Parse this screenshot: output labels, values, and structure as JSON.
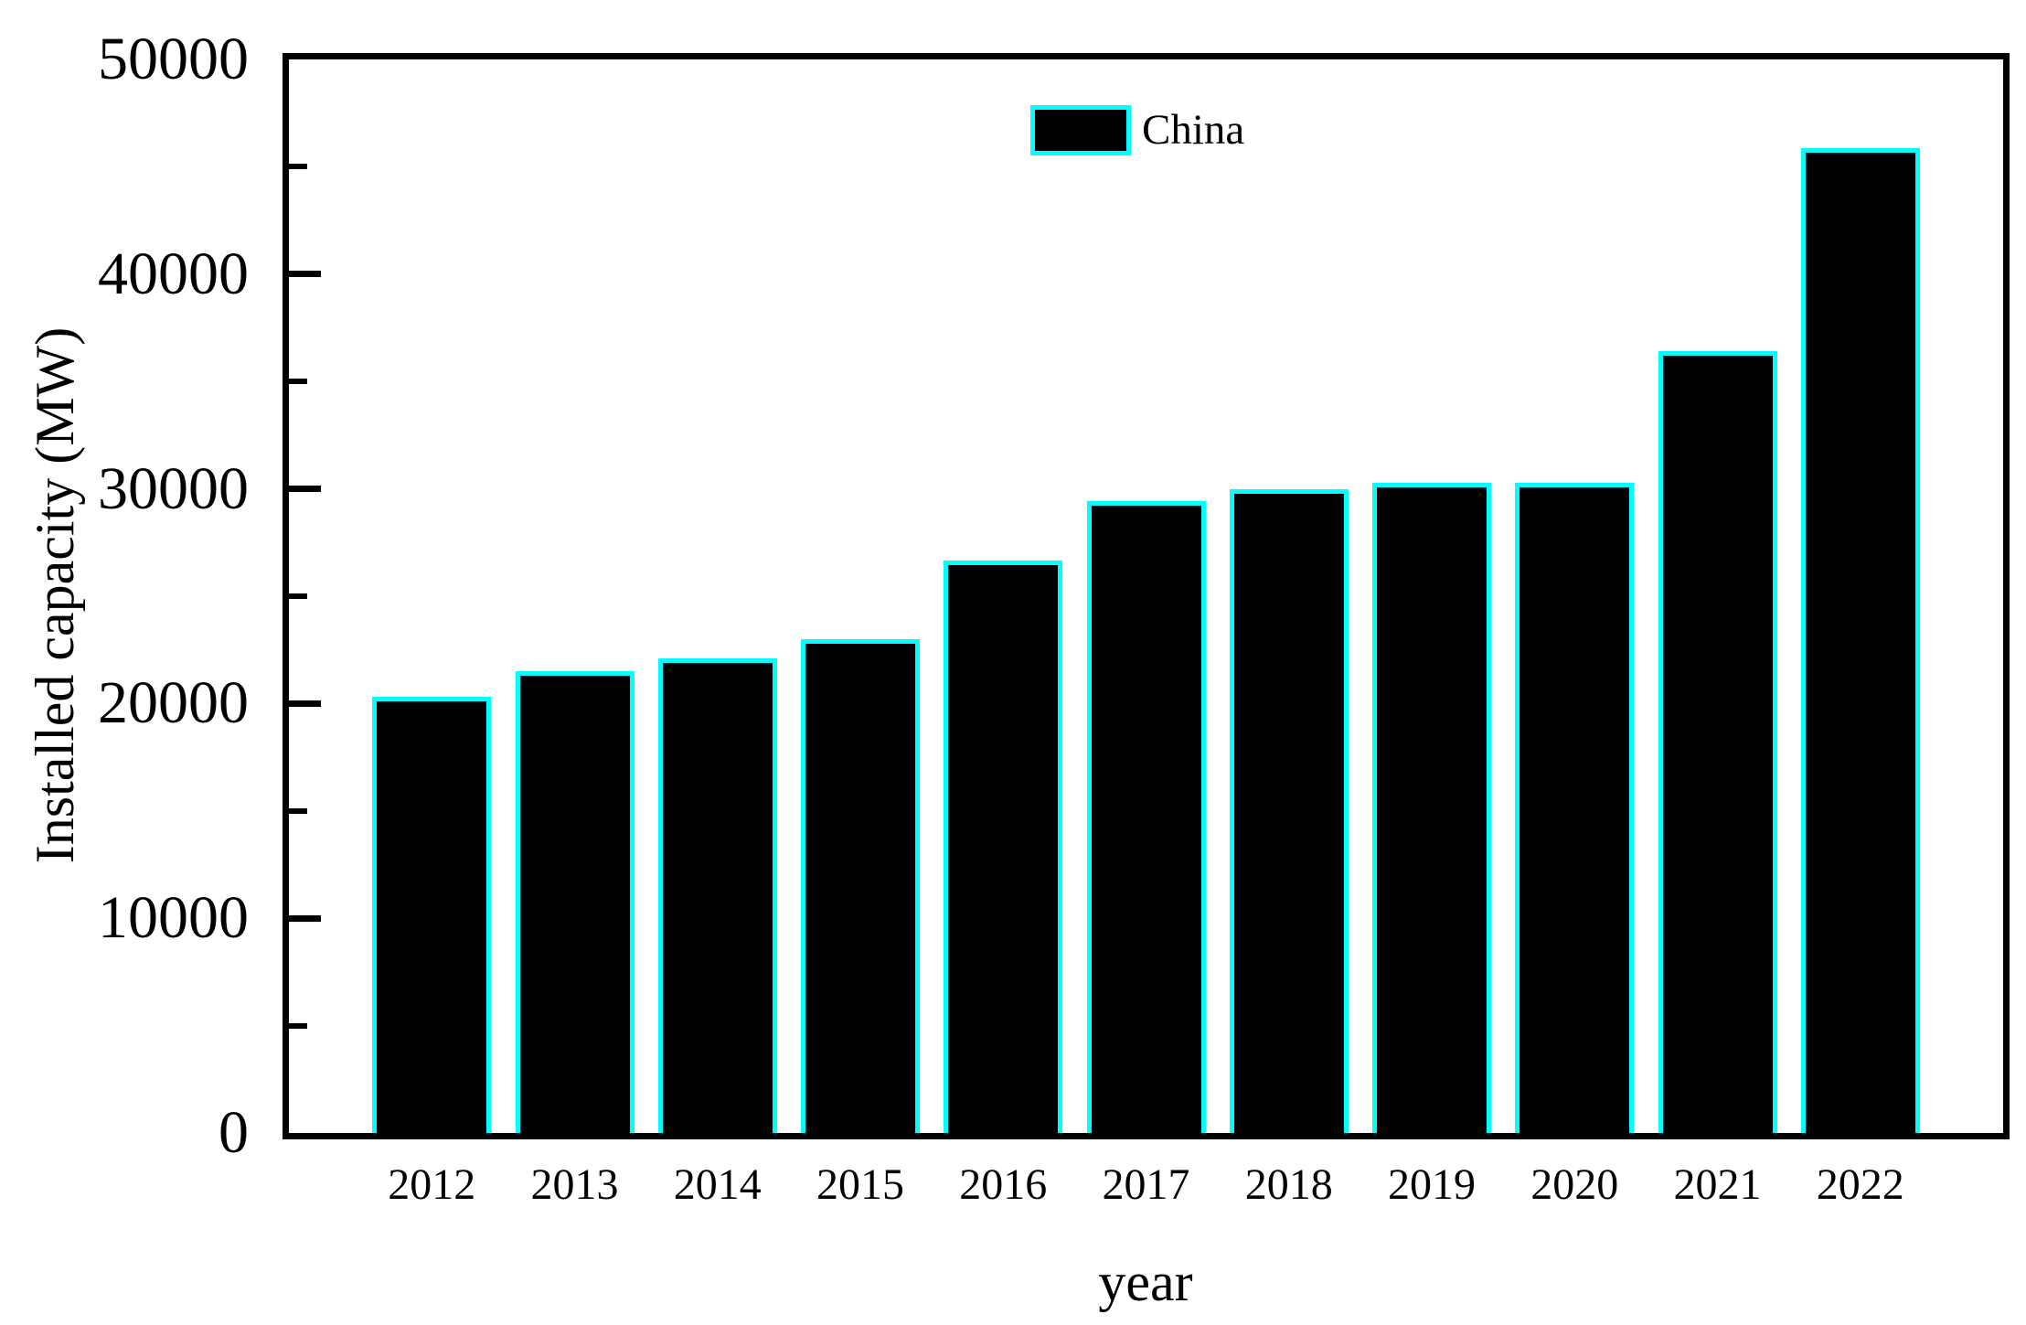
{
  "chart_data": {
    "type": "bar",
    "title": "",
    "xlabel": "year",
    "ylabel": "Installed capacity (MW)",
    "categories": [
      "2012",
      "2013",
      "2014",
      "2015",
      "2016",
      "2017",
      "2018",
      "2019",
      "2020",
      "2021",
      "2022"
    ],
    "series": [
      {
        "name": "China",
        "values": [
          20300,
          21500,
          22100,
          23000,
          26650,
          29450,
          30000,
          30300,
          30300,
          36400,
          45850
        ]
      }
    ],
    "ylim": [
      0,
      50000
    ],
    "y_major_ticks": [
      0,
      10000,
      20000,
      30000,
      40000,
      50000
    ],
    "y_major_tick_labels": [
      "0",
      "10000",
      "20000",
      "30000",
      "40000",
      "50000"
    ],
    "y_minor_tick_step": 5000,
    "grid": false,
    "legend_position": "top-center",
    "legend": {
      "label": "China"
    },
    "colors": {
      "bar_fill": "#000000",
      "bar_border": "#00ffff",
      "axis": "#000000",
      "background": "#ffffff",
      "text": "#000000"
    }
  }
}
